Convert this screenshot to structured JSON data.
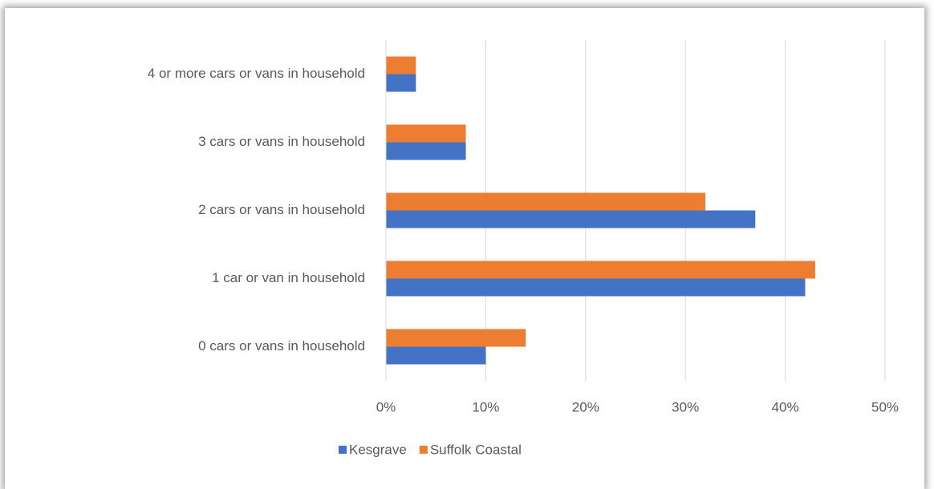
{
  "chart_data": {
    "type": "bar",
    "orientation": "horizontal",
    "categories": [
      "4 or more cars or vans in household",
      "3 cars or vans in household",
      "2 cars or vans in household",
      "1 car or van in household",
      "0 cars or vans in household"
    ],
    "series": [
      {
        "name": "Kesgrave",
        "color": "#4472c4",
        "values": [
          3,
          8,
          37,
          42,
          10
        ]
      },
      {
        "name": "Suffolk Coastal",
        "color": "#ed7d31",
        "values": [
          3,
          8,
          32,
          43,
          14
        ]
      }
    ],
    "xlim": [
      0,
      50
    ],
    "xticks": [
      {
        "value": 0,
        "label": "0%"
      },
      {
        "value": 10,
        "label": "10%"
      },
      {
        "value": 20,
        "label": "20%"
      },
      {
        "value": 30,
        "label": "30%"
      },
      {
        "value": 40,
        "label": "40%"
      },
      {
        "value": 50,
        "label": "50%"
      }
    ],
    "grid": true,
    "legend": "bottom"
  }
}
